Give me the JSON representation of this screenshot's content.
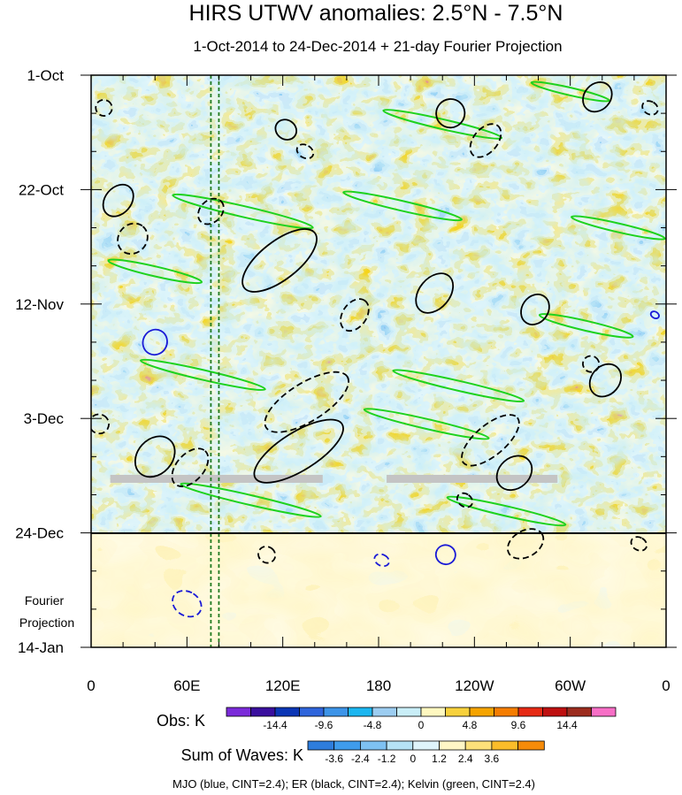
{
  "chart_data": {
    "type": "heatmap",
    "title": "HIRS UTWV anomalies: 2.5°N - 7.5°N",
    "subtitle": "1-Oct-2014 to 24-Dec-2014 + 21-day Fourier Projection",
    "x_axis": {
      "range_deg_east": [
        0,
        360
      ],
      "ticks": [
        {
          "deg": 0,
          "label": "0"
        },
        {
          "deg": 60,
          "label": "60E"
        },
        {
          "deg": 120,
          "label": "120E"
        },
        {
          "deg": 180,
          "label": "180"
        },
        {
          "deg": 240,
          "label": "120W"
        },
        {
          "deg": 300,
          "label": "60W"
        },
        {
          "deg": 360,
          "label": "0"
        }
      ]
    },
    "y_axis": {
      "range_days": [
        0,
        105
      ],
      "direction": "time increases downward",
      "ticks": [
        {
          "day": 0,
          "label": "1-Oct"
        },
        {
          "day": 21,
          "label": "22-Oct"
        },
        {
          "day": 42,
          "label": "12-Nov"
        },
        {
          "day": 63,
          "label": "3-Dec"
        },
        {
          "day": 84,
          "label": "24-Dec"
        },
        {
          "day": 105,
          "label": "14-Jan"
        }
      ]
    },
    "projection_label": [
      "Fourier",
      "Projection"
    ],
    "obs_end_day": 84,
    "reference_lines_deg": [
      75,
      80
    ],
    "missing_data_bands": [
      {
        "day": 74,
        "from_deg": 12,
        "to_deg": 145
      },
      {
        "day": 74,
        "from_deg": 185,
        "to_deg": 292
      }
    ],
    "obs_colorbar": {
      "label": "Obs: K",
      "colors": [
        "#7b2bd9",
        "#3a0f9e",
        "#0b36b5",
        "#2f65db",
        "#3d94e8",
        "#1cb6f0",
        "#9ccdf1",
        "#c9eef7",
        "#fff8c0",
        "#f7d13c",
        "#f5a400",
        "#f57d00",
        "#e62a14",
        "#be1010",
        "#9c2c1e",
        "#f76fc6"
      ],
      "labels": [
        {
          "after_box": 2,
          "text": "-14.4"
        },
        {
          "after_box": 4,
          "text": "-9.6"
        },
        {
          "after_box": 6,
          "text": "-4.8"
        },
        {
          "after_box": 8,
          "text": "0"
        },
        {
          "after_box": 10,
          "text": "4.8"
        },
        {
          "after_box": 12,
          "text": "9.6"
        },
        {
          "after_box": 14,
          "text": "14.4"
        }
      ]
    },
    "waves_colorbar": {
      "label": "Sum of Waves: K",
      "colors": [
        "#2e7ddc",
        "#3f9cec",
        "#7ec1f2",
        "#b6e2f6",
        "#dff4fb",
        "#fff6c6",
        "#fde07a",
        "#fbbd2a",
        "#f58b09"
      ],
      "labels": [
        {
          "after_box": 1,
          "text": "-3.6"
        },
        {
          "after_box": 2,
          "text": "-2.4"
        },
        {
          "after_box": 3,
          "text": "-1.2"
        },
        {
          "after_box": 4,
          "text": "0"
        },
        {
          "after_box": 5,
          "text": "1.2"
        },
        {
          "after_box": 6,
          "text": "2.4"
        },
        {
          "after_box": 7,
          "text": "3.6"
        }
      ]
    },
    "contours": {
      "caption": "MJO (blue, CINT=2.4); ER (black, CINT=2.4); Kelvin (green, CINT=2.4)",
      "styles": {
        "mjo": {
          "color": "#1a1ad6"
        },
        "er": {
          "color": "#000000"
        },
        "kelvin": {
          "color": "#1ed21e"
        }
      },
      "mjo": [
        {
          "lon": 40,
          "day": 49,
          "a": 8,
          "b": 2.2,
          "ang": -62,
          "dashed": false
        },
        {
          "lon": 353,
          "day": 44,
          "a": 2,
          "b": 0.8,
          "ang": -60,
          "dashed": false
        },
        {
          "lon": 222,
          "day": 88,
          "a": 6,
          "b": 1.8,
          "ang": -62,
          "dashed": false
        },
        {
          "lon": 182,
          "day": 89,
          "a": 3.5,
          "b": 1.4,
          "ang": -65,
          "dashed": true
        },
        {
          "lon": 60,
          "day": 97,
          "a": 7.5,
          "b": 2.8,
          "ang": -58,
          "dashed": true
        }
      ],
      "er": [
        {
          "lon": 118,
          "day": 34,
          "a": 28,
          "b": 3.5,
          "ang": -38,
          "dashed": false
        },
        {
          "lon": 135,
          "day": 60,
          "a": 30,
          "b": 3.5,
          "ang": -32,
          "dashed": true
        },
        {
          "lon": 130,
          "day": 69,
          "a": 32,
          "b": 3.5,
          "ang": -32,
          "dashed": false
        },
        {
          "lon": 40,
          "day": 70,
          "a": 14,
          "b": 3.2,
          "ang": -48,
          "dashed": false
        },
        {
          "lon": 62,
          "day": 72,
          "a": 14,
          "b": 2.5,
          "ang": -48,
          "dashed": true
        },
        {
          "lon": 215,
          "day": 40,
          "a": 14,
          "b": 2.8,
          "ang": -50,
          "dashed": false
        },
        {
          "lon": 225,
          "day": 7,
          "a": 9,
          "b": 2.6,
          "ang": -50,
          "dashed": false
        },
        {
          "lon": 247,
          "day": 12,
          "a": 12,
          "b": 2.2,
          "ang": -50,
          "dashed": true
        },
        {
          "lon": 250,
          "day": 67,
          "a": 22,
          "b": 2.8,
          "ang": -40,
          "dashed": true
        },
        {
          "lon": 265,
          "day": 73,
          "a": 12,
          "b": 2.8,
          "ang": -42,
          "dashed": false
        },
        {
          "lon": 272,
          "day": 86,
          "a": 12,
          "b": 2.4,
          "ang": -30,
          "dashed": true
        },
        {
          "lon": 278,
          "day": 43,
          "a": 10,
          "b": 2.4,
          "ang": -55,
          "dashed": false
        },
        {
          "lon": 317,
          "day": 4,
          "a": 10,
          "b": 2.4,
          "ang": -48,
          "dashed": false
        },
        {
          "lon": 350,
          "day": 6,
          "a": 4,
          "b": 1.5,
          "ang": -60,
          "dashed": true
        },
        {
          "lon": 322,
          "day": 56,
          "a": 11,
          "b": 2.6,
          "ang": -50,
          "dashed": false
        },
        {
          "lon": 313,
          "day": 53,
          "a": 5,
          "b": 1.5,
          "ang": -55,
          "dashed": true
        },
        {
          "lon": 26,
          "day": 30,
          "a": 10,
          "b": 2.6,
          "ang": -50,
          "dashed": true
        },
        {
          "lon": 17,
          "day": 23,
          "a": 11,
          "b": 2.4,
          "ang": -50,
          "dashed": false
        },
        {
          "lon": 75,
          "day": 25,
          "a": 9,
          "b": 2.0,
          "ang": -45,
          "dashed": true
        },
        {
          "lon": 165,
          "day": 44,
          "a": 11,
          "b": 2.2,
          "ang": -55,
          "dashed": true
        },
        {
          "lon": 134,
          "day": 14,
          "a": 4,
          "b": 1.6,
          "ang": -60,
          "dashed": true
        },
        {
          "lon": 122,
          "day": 10,
          "a": 6,
          "b": 2.0,
          "ang": -55,
          "dashed": false
        },
        {
          "lon": 8,
          "day": 6,
          "a": 5,
          "b": 1.5,
          "ang": -60,
          "dashed": true
        },
        {
          "lon": 5,
          "day": 64,
          "a": 6,
          "b": 1.8,
          "ang": -60,
          "dashed": true
        },
        {
          "lon": 110,
          "day": 88,
          "a": 5,
          "b": 1.6,
          "ang": -55,
          "dashed": true
        },
        {
          "lon": 343,
          "day": 86,
          "a": 4,
          "b": 1.5,
          "ang": -60,
          "dashed": true
        },
        {
          "lon": 234,
          "day": 78,
          "a": 4,
          "b": 1.5,
          "ang": -55,
          "dashed": true
        }
      ],
      "kelvin": [
        {
          "lon": 220,
          "day": 9,
          "a": 38,
          "b": 0.9,
          "ang": 13,
          "dashed": false
        },
        {
          "lon": 95,
          "day": 25,
          "a": 45,
          "b": 1.0,
          "ang": 13,
          "dashed": false
        },
        {
          "lon": 195,
          "day": 24,
          "a": 38,
          "b": 0.9,
          "ang": 13,
          "dashed": false
        },
        {
          "lon": 70,
          "day": 55,
          "a": 40,
          "b": 0.9,
          "ang": 13,
          "dashed": false
        },
        {
          "lon": 230,
          "day": 57,
          "a": 42,
          "b": 0.9,
          "ang": 13,
          "dashed": false
        },
        {
          "lon": 310,
          "day": 46,
          "a": 30,
          "b": 0.9,
          "ang": 13,
          "dashed": false
        },
        {
          "lon": 210,
          "day": 64,
          "a": 40,
          "b": 0.9,
          "ang": 13,
          "dashed": false
        },
        {
          "lon": 100,
          "day": 78,
          "a": 45,
          "b": 0.9,
          "ang": 13,
          "dashed": false
        },
        {
          "lon": 260,
          "day": 80,
          "a": 38,
          "b": 0.9,
          "ang": 13,
          "dashed": false
        },
        {
          "lon": 300,
          "day": 3,
          "a": 25,
          "b": 0.7,
          "ang": 13,
          "dashed": false
        },
        {
          "lon": 40,
          "day": 36,
          "a": 30,
          "b": 0.9,
          "ang": 13,
          "dashed": false
        },
        {
          "lon": 330,
          "day": 28,
          "a": 30,
          "b": 0.8,
          "ang": 13,
          "dashed": false
        }
      ]
    }
  }
}
